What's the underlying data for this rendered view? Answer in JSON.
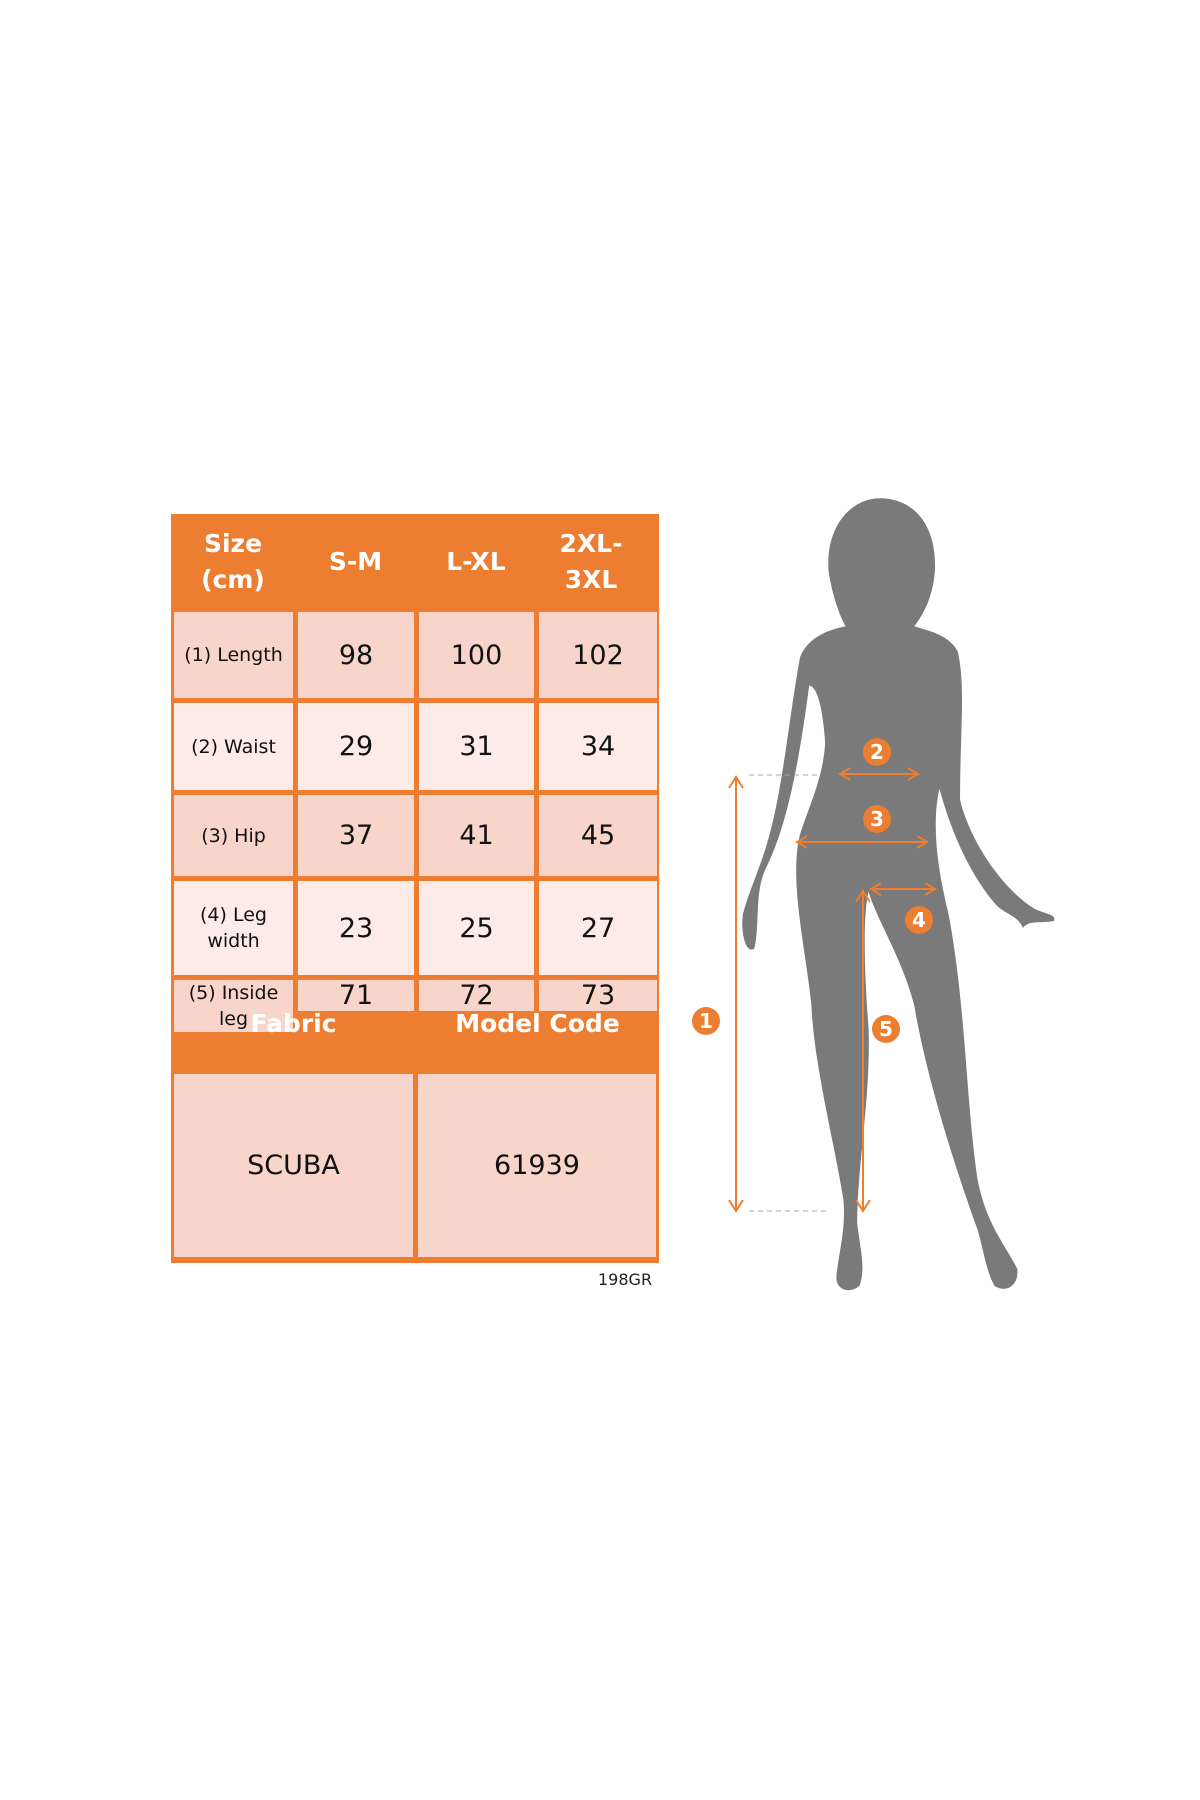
{
  "header": {
    "size": "Size (cm)",
    "sizes": [
      "S-M",
      "L-XL",
      "2XL-3XL"
    ]
  },
  "rows": [
    {
      "label": "(1) Length",
      "values": [
        "98",
        "100",
        "102"
      ]
    },
    {
      "label": "(2) Waist",
      "values": [
        "29",
        "31",
        "34"
      ]
    },
    {
      "label": "(3) Hip",
      "values": [
        "37",
        "41",
        "45"
      ]
    },
    {
      "label": "(4) Leg width",
      "values": [
        "23",
        "25",
        "27"
      ]
    },
    {
      "label": "(5) Inside leg",
      "values": [
        "71",
        "72",
        "73"
      ]
    }
  ],
  "footer": {
    "fabric_label": "Fabric",
    "model_label": "Model Code",
    "fabric": "SCUBA",
    "model_code": "61939"
  },
  "image_code": "198GR",
  "markers": [
    "1",
    "2",
    "3",
    "4",
    "5"
  ],
  "colors": {
    "accent": "#ed7d31",
    "row_dark": "#f8d5cb",
    "row_light": "#fcebe6",
    "silhouette": "#7a7a7a"
  }
}
